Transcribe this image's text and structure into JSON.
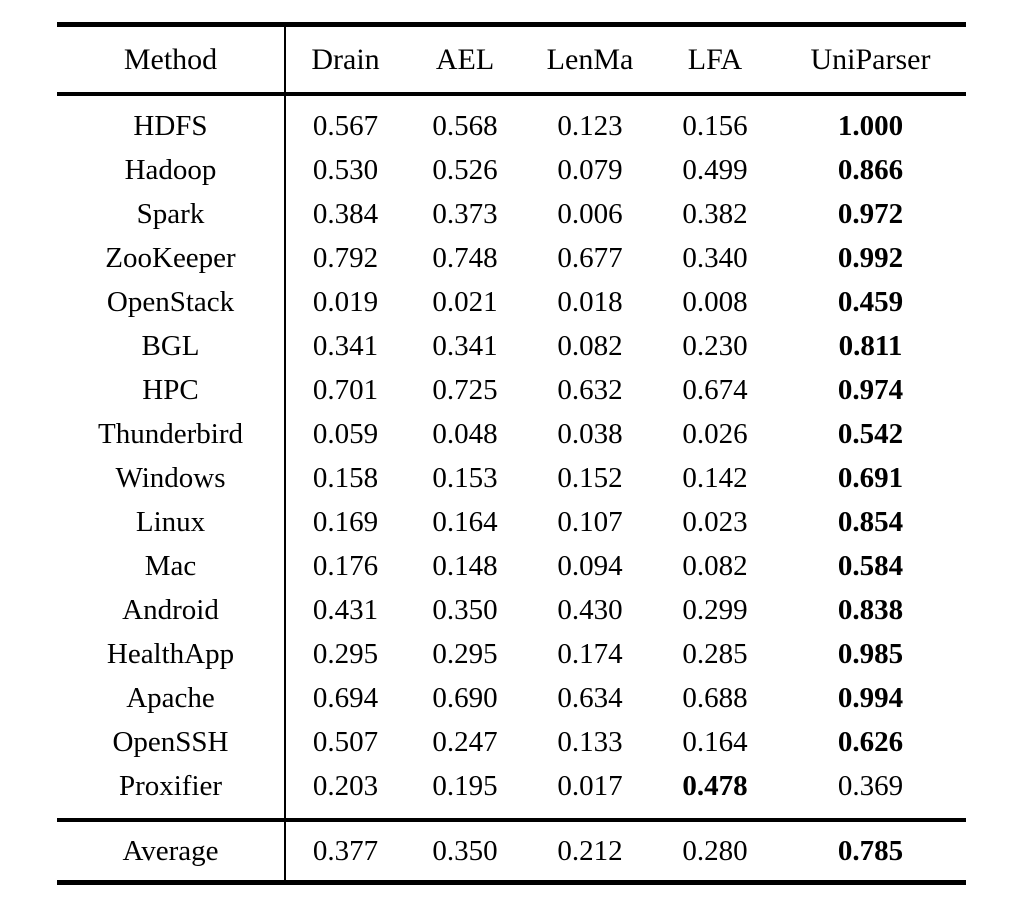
{
  "colors": {
    "text": "#000000",
    "background": "#ffffff",
    "rule": "#000000"
  },
  "table": {
    "columns": [
      "Method",
      "Drain",
      "AEL",
      "LenMa",
      "LFA",
      "UniParser"
    ],
    "rows": [
      {
        "method": "HDFS",
        "values": [
          "0.567",
          "0.568",
          "0.123",
          "0.156",
          "1.000"
        ],
        "bold_index": 4
      },
      {
        "method": "Hadoop",
        "values": [
          "0.530",
          "0.526",
          "0.079",
          "0.499",
          "0.866"
        ],
        "bold_index": 4
      },
      {
        "method": "Spark",
        "values": [
          "0.384",
          "0.373",
          "0.006",
          "0.382",
          "0.972"
        ],
        "bold_index": 4
      },
      {
        "method": "ZooKeeper",
        "values": [
          "0.792",
          "0.748",
          "0.677",
          "0.340",
          "0.992"
        ],
        "bold_index": 4
      },
      {
        "method": "OpenStack",
        "values": [
          "0.019",
          "0.021",
          "0.018",
          "0.008",
          "0.459"
        ],
        "bold_index": 4
      },
      {
        "method": "BGL",
        "values": [
          "0.341",
          "0.341",
          "0.082",
          "0.230",
          "0.811"
        ],
        "bold_index": 4
      },
      {
        "method": "HPC",
        "values": [
          "0.701",
          "0.725",
          "0.632",
          "0.674",
          "0.974"
        ],
        "bold_index": 4
      },
      {
        "method": "Thunderbird",
        "values": [
          "0.059",
          "0.048",
          "0.038",
          "0.026",
          "0.542"
        ],
        "bold_index": 4
      },
      {
        "method": "Windows",
        "values": [
          "0.158",
          "0.153",
          "0.152",
          "0.142",
          "0.691"
        ],
        "bold_index": 4
      },
      {
        "method": "Linux",
        "values": [
          "0.169",
          "0.164",
          "0.107",
          "0.023",
          "0.854"
        ],
        "bold_index": 4
      },
      {
        "method": "Mac",
        "values": [
          "0.176",
          "0.148",
          "0.094",
          "0.082",
          "0.584"
        ],
        "bold_index": 4
      },
      {
        "method": "Android",
        "values": [
          "0.431",
          "0.350",
          "0.430",
          "0.299",
          "0.838"
        ],
        "bold_index": 4
      },
      {
        "method": "HealthApp",
        "values": [
          "0.295",
          "0.295",
          "0.174",
          "0.285",
          "0.985"
        ],
        "bold_index": 4
      },
      {
        "method": "Apache",
        "values": [
          "0.694",
          "0.690",
          "0.634",
          "0.688",
          "0.994"
        ],
        "bold_index": 4
      },
      {
        "method": "OpenSSH",
        "values": [
          "0.507",
          "0.247",
          "0.133",
          "0.164",
          "0.626"
        ],
        "bold_index": 4
      },
      {
        "method": "Proxifier",
        "values": [
          "0.203",
          "0.195",
          "0.017",
          "0.478",
          "0.369"
        ],
        "bold_index": 3
      }
    ],
    "footer": {
      "method": "Average",
      "values": [
        "0.377",
        "0.350",
        "0.212",
        "0.280",
        "0.785"
      ],
      "bold_index": 4
    }
  }
}
